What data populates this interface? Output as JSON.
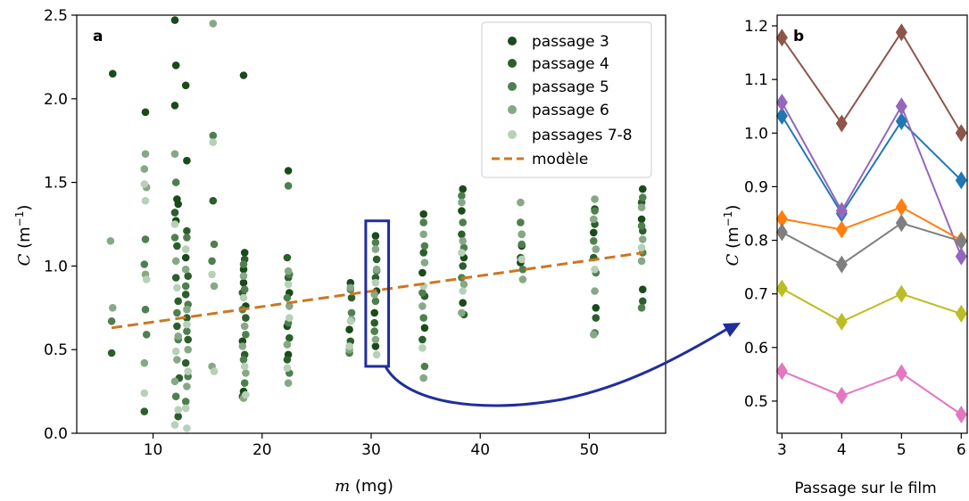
{
  "chart_data": [
    {
      "panel": "a",
      "type": "scatter",
      "xlabel_var": "m",
      "xlabel_unit": "(mg)",
      "ylabel_var": "C",
      "ylabel_unit": "(m",
      "ylabel_exp": "−1",
      "ylabel_close": ")",
      "xlim": [
        3,
        57
      ],
      "ylim": [
        0,
        2.5
      ],
      "xticks": [
        10,
        20,
        30,
        40,
        50
      ],
      "yticks": [
        0.0,
        0.5,
        1.0,
        1.5,
        2.0,
        2.5
      ],
      "ytick_labels": [
        "0.0",
        "0.5",
        "1.0",
        "1.5",
        "2.0",
        "2.5"
      ],
      "legend_position": "top-right",
      "series": [
        {
          "name": "passage 3",
          "color": "#1a4a1a",
          "points": [
            [
              6.3,
              2.15
            ],
            [
              9.3,
              1.92
            ],
            [
              12.0,
              2.47
            ],
            [
              12.1,
              2.2
            ],
            [
              12.0,
              1.96
            ],
            [
              13.0,
              2.08
            ],
            [
              12.2,
              1.4
            ],
            [
              12.3,
              1.37
            ],
            [
              12.1,
              1.27
            ],
            [
              13.1,
              1.63
            ],
            [
              13.0,
              1.05
            ],
            [
              18.3,
              2.14
            ],
            [
              18.4,
              1.08
            ],
            [
              18.3,
              0.98
            ],
            [
              18.3,
              0.9
            ],
            [
              18.5,
              0.76
            ],
            [
              18.2,
              0.55
            ],
            [
              18.3,
              0.25
            ],
            [
              22.4,
              1.57
            ],
            [
              22.5,
              0.84
            ],
            [
              22.3,
              0.64
            ],
            [
              22.4,
              0.47
            ],
            [
              28.1,
              0.9
            ],
            [
              28.0,
              0.62
            ],
            [
              30.4,
              1.18
            ],
            [
              30.5,
              0.85
            ],
            [
              30.3,
              0.72
            ],
            [
              30.4,
              0.52
            ],
            [
              34.8,
              1.31
            ],
            [
              34.7,
              0.96
            ],
            [
              34.9,
              0.63
            ],
            [
              38.4,
              1.46
            ],
            [
              38.3,
              1.33
            ],
            [
              38.5,
              1.05
            ],
            [
              38.4,
              0.78
            ],
            [
              43.8,
              1.12
            ],
            [
              43.7,
              1.02
            ],
            [
              50.5,
              1.34
            ],
            [
              50.4,
              1.2
            ],
            [
              50.6,
              0.75
            ],
            [
              54.9,
              1.46
            ],
            [
              54.8,
              1.28
            ],
            [
              54.9,
              0.86
            ]
          ]
        },
        {
          "name": "passage 4",
          "color": "#2c5e2c",
          "points": [
            [
              6.2,
              0.48
            ],
            [
              9.2,
              0.13
            ],
            [
              12.0,
              1.32
            ],
            [
              12.2,
              1.12
            ],
            [
              12.1,
              0.93
            ],
            [
              12.3,
              0.79
            ],
            [
              12.2,
              0.64
            ],
            [
              12.4,
              0.33
            ],
            [
              12.3,
              0.1
            ],
            [
              13.1,
              1.21
            ],
            [
              13.2,
              0.94
            ],
            [
              13.0,
              0.83
            ],
            [
              13.1,
              0.69
            ],
            [
              13.2,
              0.56
            ],
            [
              13.0,
              0.42
            ],
            [
              15.5,
              1.39
            ],
            [
              18.4,
              1.04
            ],
            [
              18.2,
              0.84
            ],
            [
              18.5,
              0.69
            ],
            [
              18.4,
              0.47
            ],
            [
              18.2,
              0.22
            ],
            [
              22.3,
              1.05
            ],
            [
              22.4,
              0.93
            ],
            [
              22.5,
              0.57
            ],
            [
              22.3,
              0.44
            ],
            [
              28.2,
              0.81
            ],
            [
              28.1,
              0.55
            ],
            [
              30.5,
              1.04
            ],
            [
              30.4,
              0.93
            ],
            [
              30.3,
              0.66
            ],
            [
              34.8,
              1.08
            ],
            [
              34.9,
              0.82
            ],
            [
              34.7,
              0.56
            ],
            [
              38.3,
              1.19
            ],
            [
              38.4,
              1.0
            ],
            [
              38.5,
              0.71
            ],
            [
              43.8,
              1.19
            ],
            [
              43.7,
              1.05
            ],
            [
              50.5,
              1.25
            ],
            [
              50.4,
              1.05
            ],
            [
              50.6,
              0.69
            ],
            [
              54.8,
              1.38
            ],
            [
              54.9,
              1.21
            ],
            [
              54.9,
              0.79
            ]
          ]
        },
        {
          "name": "passage 5",
          "color": "#4f7f4f",
          "points": [
            [
              6.2,
              0.67
            ],
            [
              9.3,
              1.16
            ],
            [
              9.2,
              1.01
            ],
            [
              9.3,
              0.74
            ],
            [
              9.4,
              0.59
            ],
            [
              12.1,
              1.5
            ],
            [
              12.0,
              1.17
            ],
            [
              12.2,
              0.72
            ],
            [
              12.3,
              0.56
            ],
            [
              12.1,
              0.22
            ],
            [
              13.1,
              1.17
            ],
            [
              13.0,
              0.88
            ],
            [
              13.2,
              0.77
            ],
            [
              13.1,
              0.61
            ],
            [
              13.2,
              0.34
            ],
            [
              13.0,
              0.19
            ],
            [
              15.5,
              1.78
            ],
            [
              15.6,
              1.13
            ],
            [
              15.4,
              1.03
            ],
            [
              18.3,
              1.01
            ],
            [
              18.4,
              0.86
            ],
            [
              18.2,
              0.74
            ],
            [
              18.5,
              0.59
            ],
            [
              18.3,
              0.44
            ],
            [
              18.4,
              0.3
            ],
            [
              22.4,
              1.48
            ],
            [
              22.5,
              0.95
            ],
            [
              22.3,
              0.81
            ],
            [
              22.4,
              0.66
            ],
            [
              22.5,
              0.36
            ],
            [
              28.1,
              0.86
            ],
            [
              28.2,
              0.72
            ],
            [
              28.0,
              0.48
            ],
            [
              30.4,
              1.14
            ],
            [
              30.5,
              0.97
            ],
            [
              30.4,
              0.79
            ],
            [
              30.3,
              0.61
            ],
            [
              34.8,
              1.26
            ],
            [
              34.9,
              1.12
            ],
            [
              34.7,
              0.84
            ],
            [
              34.8,
              0.69
            ],
            [
              34.9,
              0.4
            ],
            [
              38.3,
              1.42
            ],
            [
              38.4,
              1.26
            ],
            [
              38.5,
              1.11
            ],
            [
              38.3,
              0.93
            ],
            [
              43.7,
              1.26
            ],
            [
              43.8,
              1.13
            ],
            [
              43.9,
              0.98
            ],
            [
              50.5,
              1.33
            ],
            [
              50.4,
              1.15
            ],
            [
              50.6,
              0.96
            ],
            [
              50.5,
              0.6
            ],
            [
              54.9,
              1.41
            ],
            [
              54.8,
              1.24
            ],
            [
              54.9,
              1.08
            ],
            [
              54.8,
              0.75
            ]
          ]
        },
        {
          "name": "passage 6",
          "color": "#86a886",
          "points": [
            [
              6.1,
              1.15
            ],
            [
              6.3,
              0.75
            ],
            [
              9.3,
              1.67
            ],
            [
              9.2,
              1.58
            ],
            [
              9.4,
              1.47
            ],
            [
              9.3,
              0.95
            ],
            [
              9.2,
              0.42
            ],
            [
              12.0,
              1.67
            ],
            [
              12.1,
              1.03
            ],
            [
              12.3,
              0.58
            ],
            [
              12.2,
              0.44
            ],
            [
              12.0,
              0.31
            ],
            [
              13.0,
              0.98
            ],
            [
              13.1,
              0.74
            ],
            [
              13.2,
              0.5
            ],
            [
              13.1,
              0.28
            ],
            [
              15.5,
              2.45
            ],
            [
              15.6,
              0.88
            ],
            [
              15.4,
              0.4
            ],
            [
              18.3,
              0.94
            ],
            [
              18.4,
              0.64
            ],
            [
              18.2,
              0.52
            ],
            [
              18.5,
              0.36
            ],
            [
              18.3,
              0.21
            ],
            [
              22.4,
              0.97
            ],
            [
              22.5,
              0.76
            ],
            [
              22.3,
              0.53
            ],
            [
              22.4,
              0.3
            ],
            [
              28.1,
              0.87
            ],
            [
              28.2,
              0.68
            ],
            [
              28.0,
              0.5
            ],
            [
              30.4,
              1.1
            ],
            [
              30.5,
              0.98
            ],
            [
              30.3,
              0.83
            ],
            [
              30.4,
              0.56
            ],
            [
              34.8,
              1.19
            ],
            [
              34.9,
              1.02
            ],
            [
              34.7,
              0.76
            ],
            [
              34.8,
              0.33
            ],
            [
              38.3,
              1.38
            ],
            [
              38.4,
              1.15
            ],
            [
              38.5,
              0.89
            ],
            [
              38.3,
              0.72
            ],
            [
              43.7,
              1.38
            ],
            [
              43.8,
              1.19
            ],
            [
              43.9,
              0.92
            ],
            [
              50.5,
              1.4
            ],
            [
              50.4,
              1.28
            ],
            [
              50.6,
              1.1
            ],
            [
              50.5,
              0.85
            ],
            [
              50.4,
              0.59
            ],
            [
              54.8,
              1.35
            ],
            [
              54.9,
              1.16
            ],
            [
              54.8,
              1.03
            ]
          ]
        },
        {
          "name": "passages 7-8",
          "color": "#b7d0b7",
          "points": [
            [
              9.2,
              1.49
            ],
            [
              9.3,
              1.39
            ],
            [
              9.4,
              0.92
            ],
            [
              9.2,
              0.24
            ],
            [
              12.0,
              1.25
            ],
            [
              12.2,
              0.87
            ],
            [
              12.1,
              0.49
            ],
            [
              12.3,
              0.14
            ],
            [
              12.0,
              0.05
            ],
            [
              13.0,
              1.1
            ],
            [
              13.1,
              0.65
            ],
            [
              13.2,
              0.37
            ],
            [
              13.0,
              0.15
            ],
            [
              13.1,
              0.03
            ],
            [
              15.5,
              1.74
            ],
            [
              15.4,
              0.95
            ],
            [
              15.6,
              0.37
            ],
            [
              18.3,
              0.81
            ],
            [
              18.4,
              0.4
            ],
            [
              18.5,
              0.23
            ],
            [
              22.4,
              0.89
            ],
            [
              22.5,
              0.69
            ],
            [
              22.3,
              0.39
            ],
            [
              28.1,
              0.67
            ],
            [
              28.0,
              0.52
            ],
            [
              30.4,
              0.9
            ],
            [
              30.5,
              0.47
            ],
            [
              34.8,
              0.88
            ],
            [
              34.7,
              0.51
            ],
            [
              38.3,
              1.08
            ],
            [
              38.4,
              0.85
            ],
            [
              43.8,
              1.04
            ],
            [
              50.5,
              0.98
            ],
            [
              54.8,
              1.11
            ]
          ]
        }
      ],
      "model": {
        "name": "modèle",
        "color": "#cc7722",
        "x": [
          6.2,
          55.0
        ],
        "y": [
          0.63,
          1.08
        ]
      },
      "highlight": {
        "color": "#1f2e9b",
        "x_range": [
          29.5,
          31.6
        ],
        "y_range": [
          0.4,
          1.27
        ]
      }
    },
    {
      "panel": "b",
      "type": "line",
      "xlabel": "Passage sur le film",
      "ylabel_var": "C",
      "ylabel_unit": "(m",
      "ylabel_exp": "−1",
      "ylabel_close": ")",
      "x": [
        3,
        4,
        5,
        6
      ],
      "xlim": [
        2.92,
        6.1
      ],
      "ylim": [
        0.44,
        1.22
      ],
      "yticks": [
        0.5,
        0.6,
        0.7,
        0.8,
        0.9,
        1.0,
        1.1,
        1.2
      ],
      "ytick_labels": [
        "0.5",
        "0.6",
        "0.7",
        "0.8",
        "0.9",
        "1.0",
        "1.1",
        "1.2"
      ],
      "series": [
        {
          "color": "#8c564b",
          "values": [
            1.178,
            1.018,
            1.188,
            1.0
          ]
        },
        {
          "color": "#1f77b4",
          "values": [
            1.032,
            0.85,
            1.022,
            0.912
          ]
        },
        {
          "color": "#9467bd",
          "values": [
            1.057,
            0.855,
            1.05,
            0.77
          ]
        },
        {
          "color": "#ff7f0e",
          "values": [
            0.84,
            0.82,
            0.862,
            0.8
          ]
        },
        {
          "color": "#7f7f7f",
          "values": [
            0.815,
            0.755,
            0.832,
            0.798
          ]
        },
        {
          "color": "#bcbd22",
          "values": [
            0.71,
            0.648,
            0.7,
            0.663
          ]
        },
        {
          "color": "#e377c2",
          "values": [
            0.556,
            0.51,
            0.552,
            0.475
          ]
        }
      ]
    }
  ],
  "arrow_color": "#1f2e9b"
}
